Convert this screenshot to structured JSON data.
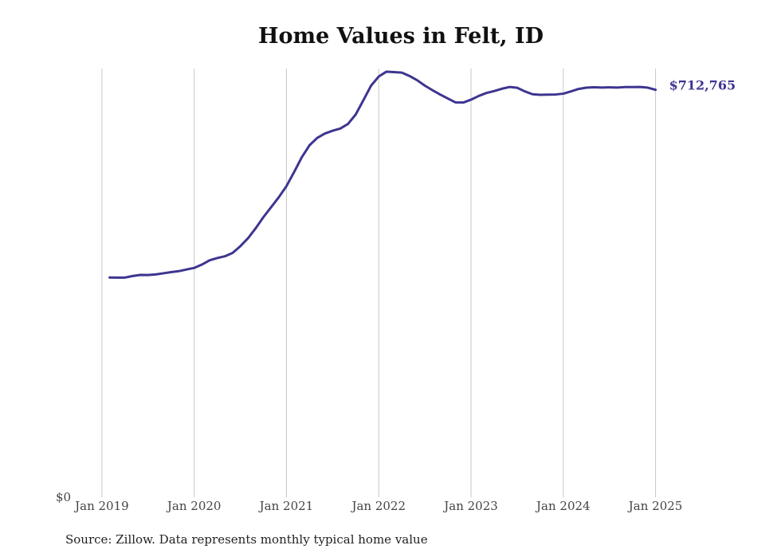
{
  "chart_data": {
    "type": "line",
    "title": "Home Values in Felt, ID",
    "source_note": "Source: Zillow. Data represents monthly typical home value",
    "xlabel": "",
    "ylabel": "",
    "y_tick_labels": [
      {
        "value": 0,
        "label": "$0"
      }
    ],
    "x_tick_labels": [
      {
        "label": "Jan 2019",
        "t": 0
      },
      {
        "label": "Jan 2020",
        "t": 12
      },
      {
        "label": "Jan 2021",
        "t": 24
      },
      {
        "label": "Jan 2022",
        "t": 36
      },
      {
        "label": "Jan 2023",
        "t": 48
      },
      {
        "label": "Jan 2024",
        "t": 60
      },
      {
        "label": "Jan 2025",
        "t": 72
      }
    ],
    "xlim": [
      -0.3,
      76.5
    ],
    "ylim": [
      0,
      750000
    ],
    "grid": {
      "vertical": true,
      "horizontal": false
    },
    "line_color": "#3d3590",
    "end_label": "$712,765",
    "series": [
      {
        "points": [
          [
            1,
            384500
          ],
          [
            2,
            384200
          ],
          [
            3,
            384300
          ],
          [
            4,
            387000
          ],
          [
            5,
            389000
          ],
          [
            6,
            388800
          ],
          [
            7,
            389800
          ],
          [
            8,
            391800
          ],
          [
            9,
            393800
          ],
          [
            10,
            395500
          ],
          [
            11,
            398400
          ],
          [
            12,
            401200
          ],
          [
            13,
            407000
          ],
          [
            14,
            414500
          ],
          [
            15,
            418500
          ],
          [
            16,
            421600
          ],
          [
            17,
            427500
          ],
          [
            18,
            439200
          ],
          [
            19,
            453100
          ],
          [
            20,
            470600
          ],
          [
            21,
            490000
          ],
          [
            22,
            507300
          ],
          [
            23,
            524800
          ],
          [
            24,
            544300
          ],
          [
            25,
            569000
          ],
          [
            26,
            595000
          ],
          [
            27,
            615800
          ],
          [
            28,
            628600
          ],
          [
            29,
            636300
          ],
          [
            30,
            641200
          ],
          [
            31,
            645000
          ],
          [
            32,
            653000
          ],
          [
            33,
            669500
          ],
          [
            34,
            694500
          ],
          [
            35,
            720000
          ],
          [
            36,
            736000
          ],
          [
            37,
            744500
          ],
          [
            38,
            743800
          ],
          [
            39,
            742800
          ],
          [
            40,
            737000
          ],
          [
            41,
            729500
          ],
          [
            42,
            720000
          ],
          [
            43,
            712000
          ],
          [
            44,
            704400
          ],
          [
            45,
            697400
          ],
          [
            46,
            690700
          ],
          [
            47,
            690500
          ],
          [
            48,
            695500
          ],
          [
            49,
            702000
          ],
          [
            50,
            707200
          ],
          [
            51,
            710500
          ],
          [
            52,
            714600
          ],
          [
            53,
            717700
          ],
          [
            54,
            716300
          ],
          [
            55,
            710000
          ],
          [
            56,
            705000
          ],
          [
            57,
            704000
          ],
          [
            58,
            704300
          ],
          [
            59,
            704600
          ],
          [
            60,
            706000
          ],
          [
            61,
            710000
          ],
          [
            62,
            714300
          ],
          [
            63,
            716500
          ],
          [
            64,
            717200
          ],
          [
            65,
            716800
          ],
          [
            66,
            717100
          ],
          [
            67,
            716700
          ],
          [
            68,
            717500
          ],
          [
            69,
            717600
          ],
          [
            70,
            717800
          ],
          [
            71,
            716500
          ],
          [
            72,
            712765
          ]
        ]
      }
    ]
  }
}
